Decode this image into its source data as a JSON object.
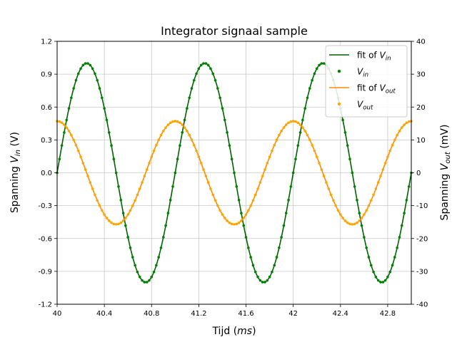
{
  "chart_data": {
    "type": "line",
    "title": "Integrator signaal sample",
    "xlabel": "Tijd (ms)",
    "ylabel_left": "Spanning V_in (V)",
    "ylabel_right": "Spanning V_out (mV)",
    "xlim": [
      40,
      43
    ],
    "ylim_left": [
      -1.2,
      1.2
    ],
    "ylim_right": [
      -40,
      40
    ],
    "xticks": [
      "40",
      "40.4",
      "40.8",
      "41.2",
      "41.6",
      "42",
      "42.4",
      "42.8"
    ],
    "xtick_values": [
      40,
      40.4,
      40.8,
      41.2,
      41.6,
      42,
      42.4,
      42.8
    ],
    "yticks_left": [
      "1.2",
      "0.9",
      "0.6",
      "0.3",
      "0.0",
      "-0.3",
      "-0.6",
      "-0.9",
      "-1.2"
    ],
    "ytick_values_left": [
      1.2,
      0.9,
      0.6,
      0.3,
      0.0,
      -0.3,
      -0.6,
      -0.9,
      -1.2
    ],
    "yticks_right": [
      "40",
      "30",
      "20",
      "10",
      "0",
      "-10",
      "-20",
      "-30",
      "-40"
    ],
    "ytick_values_right": [
      40,
      30,
      20,
      10,
      0,
      -10,
      -20,
      -30,
      -40
    ],
    "grid": true,
    "legend_position": "top-right",
    "series": [
      {
        "name": "fit of V_in",
        "kind": "line",
        "axis": "left",
        "color": "#006400",
        "function": "sine",
        "amplitude": 1.0,
        "frequency_khz": 1.0,
        "phase_deg": 0
      },
      {
        "name": "V_in",
        "kind": "markers",
        "axis": "left",
        "color": "#008000",
        "function": "sine",
        "amplitude": 1.0,
        "frequency_khz": 1.0,
        "phase_deg": 0
      },
      {
        "name": "fit of V_out",
        "kind": "line",
        "axis": "right",
        "color": "#ff8c00",
        "function": "cosine",
        "amplitude": 15.7,
        "frequency_khz": 1.0,
        "phase_deg": 0
      },
      {
        "name": "V_out",
        "kind": "markers",
        "axis": "right",
        "color": "#ffa500",
        "function": "cosine",
        "amplitude": 15.7,
        "frequency_khz": 1.0,
        "phase_deg": 0
      }
    ],
    "sample_step_ms": 0.02
  }
}
